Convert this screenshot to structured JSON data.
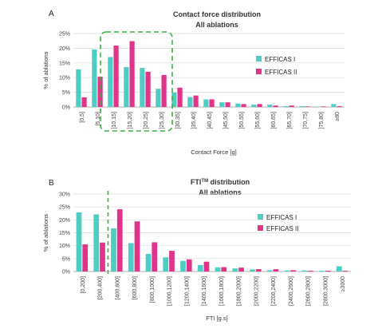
{
  "series_colors": [
    "#4ecdc4",
    "#e0338a"
  ],
  "chart_data": [
    {
      "panel_label": "A",
      "type": "bar",
      "title": "Contact force distribution",
      "subtitle": "All ablations",
      "xlabel": "Contact Force [g]",
      "ylabel": "% of ablations",
      "ylim": [
        0,
        25
      ],
      "yticks": [
        "0%",
        "5%",
        "10%",
        "15%",
        "20%",
        "25%"
      ],
      "grid": true,
      "legend": "right",
      "categories": [
        "[0,5]",
        "[5,10]",
        "]10,15]",
        "]15,20]",
        "]20,25]",
        "]25,30]",
        "]30,35]",
        "]35,40]",
        "]40,45]",
        "]45,50]",
        "]50,55]",
        "]55,60]",
        "]60,65]",
        "]65,70]",
        "]70,75]",
        "]75,80]",
        "≥80"
      ],
      "series": [
        {
          "name": "EFFICAS I",
          "values": [
            12.8,
            19.6,
            17.0,
            13.6,
            13.3,
            6.2,
            4.9,
            3.4,
            2.6,
            1.6,
            1.2,
            0.8,
            0.8,
            0.3,
            0.3,
            0.1,
            1.0
          ]
        },
        {
          "name": "EFFICAS II",
          "values": [
            3.3,
            10.3,
            20.9,
            22.4,
            12.0,
            10.9,
            6.6,
            3.9,
            2.6,
            1.6,
            1.0,
            1.0,
            0.5,
            0.5,
            0.2,
            0.2,
            0.3
          ]
        }
      ],
      "annotation": "dashed box around ]10,15] to ]25,30]"
    },
    {
      "panel_label": "B",
      "type": "bar",
      "title": "FTI",
      "title_sup": "TM",
      "title_suffix": " distribution",
      "subtitle": "All ablations",
      "xlabel": "FTI [g.s]",
      "ylabel": "% of ablations",
      "ylim": [
        0,
        30
      ],
      "yticks": [
        "0%",
        "5%",
        "10%",
        "15%",
        "20%",
        "25%",
        "30%"
      ],
      "grid": true,
      "legend": "right",
      "categories": [
        "[0,200]",
        "[200,400]",
        "[400,600]",
        "[600,800]",
        "[800,1000]",
        "[1000,1200]",
        "[1200,1400]",
        "[1400,1600]",
        "[1600,1800]",
        "[1800,2000]",
        "[2000,2200]",
        "[2200,2400]",
        "[2400,2600]",
        "[2600,2800]",
        "[2800,3000]",
        "≥3000"
      ],
      "series": [
        {
          "name": "EFFICAS I",
          "values": [
            22.9,
            22.1,
            16.7,
            11.0,
            6.8,
            5.5,
            4.1,
            2.5,
            1.6,
            1.2,
            0.8,
            0.5,
            0.4,
            0.4,
            0.3,
            2.0
          ]
        },
        {
          "name": "EFFICAS II",
          "values": [
            10.5,
            11.2,
            24.1,
            19.4,
            11.3,
            8.0,
            4.7,
            3.8,
            1.7,
            1.5,
            0.9,
            0.9,
            0.5,
            0.3,
            0.3,
            0.3
          ]
        }
      ],
      "annotation": "dashed vertical line between [200,400] and [400,600]"
    }
  ]
}
